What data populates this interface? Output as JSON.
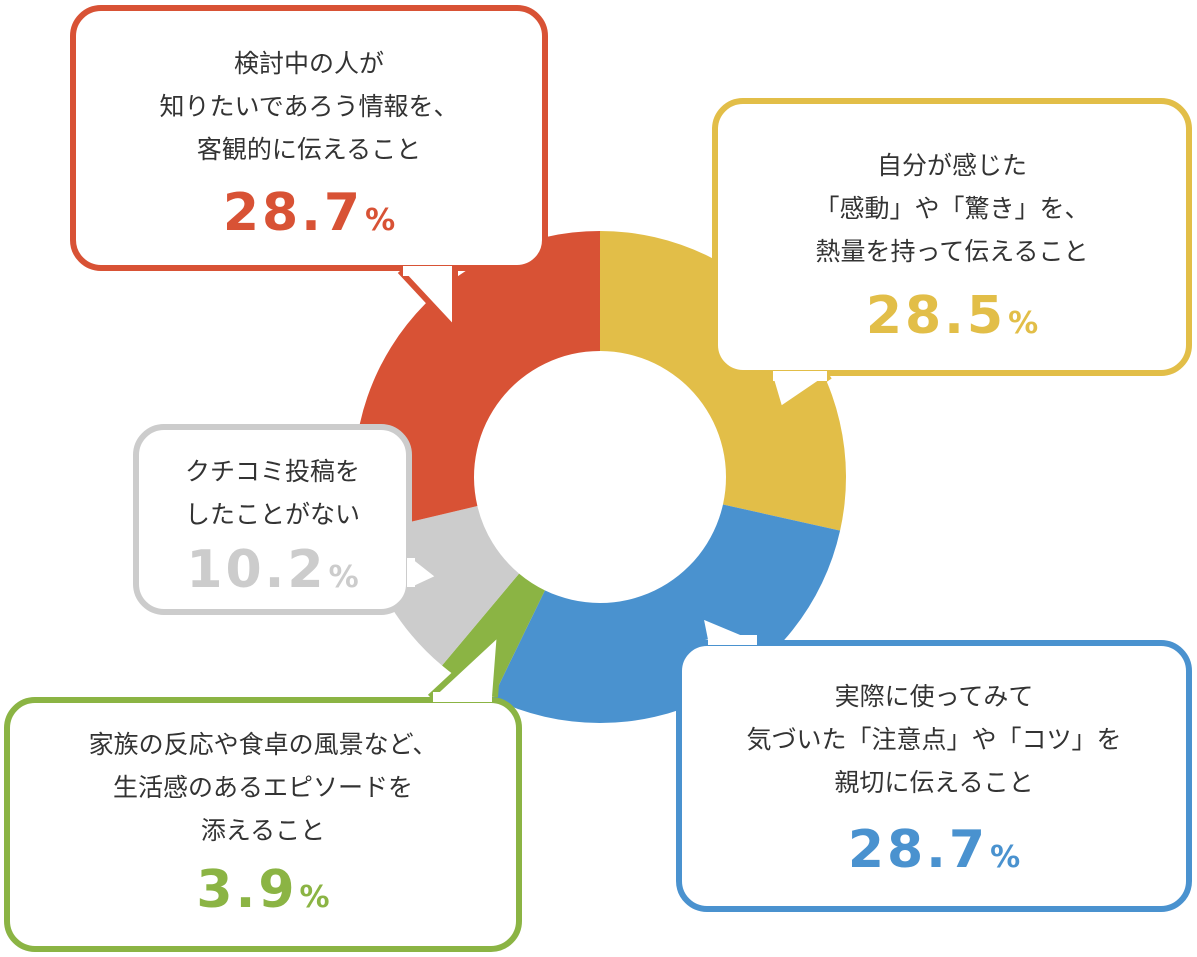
{
  "chart_data": {
    "type": "pie",
    "variant": "donut",
    "slices": [
      {
        "key": "emotion",
        "lines": [
          "自分が感じた",
          "「感動」や「驚き」を、",
          "熱量を持って伝えること"
        ],
        "value": 28.5,
        "value_label": "28.5",
        "unit": "%",
        "color": "#E2BE48"
      },
      {
        "key": "practical",
        "lines": [
          "実際に使ってみて",
          "気づいた「注意点」や「コツ」を",
          "親切に伝えること"
        ],
        "value": 28.7,
        "value_label": "28.7",
        "unit": "%",
        "color": "#4A92CF"
      },
      {
        "key": "lifestyle",
        "lines": [
          "家族の反応や食卓の風景など、",
          "生活感のあるエピソードを",
          "添えること"
        ],
        "value": 3.9,
        "value_label": "3.9",
        "unit": "%",
        "color": "#8BB444"
      },
      {
        "key": "never",
        "lines": [
          "クチコミ投稿を",
          "したことがない"
        ],
        "value": 10.2,
        "value_label": "10.2",
        "unit": "%",
        "color": "#CCCCCC"
      },
      {
        "key": "objective",
        "lines": [
          "検討中の人が",
          "知りたいであろう情報を、",
          "客観的に伝えること"
        ],
        "value": 28.7,
        "value_label": "28.7",
        "unit": "%",
        "color": "#D85235"
      }
    ]
  }
}
